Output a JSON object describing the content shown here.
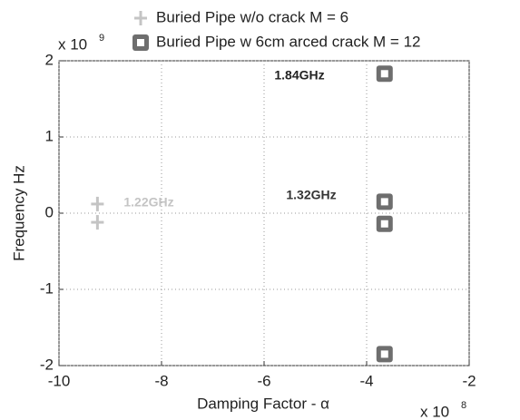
{
  "chart_data": {
    "type": "scatter",
    "xlabel": "Damping Factor - α",
    "ylabel": "Frequency Hz",
    "x_multiplier": {
      "base": "x 10",
      "exponent": "8"
    },
    "y_multiplier": {
      "base": "x 10",
      "exponent": "9"
    },
    "series": [
      {
        "name": "Buried Pipe w/o crack M = 6",
        "color": "#c4c4c4",
        "marker": "plus",
        "x": [
          -9.25,
          -9.25
        ],
        "values": [
          0.12,
          -0.12
        ]
      },
      {
        "name": "Buried Pipe w 6cm arced crack M = 12",
        "color": "#6e6e6e",
        "marker": "square",
        "x": [
          -3.65,
          -3.65,
          -3.65,
          -3.65
        ],
        "values": [
          1.83,
          0.15,
          -0.14,
          -1.85
        ]
      }
    ],
    "annotations": [
      "1.84GHz",
      "1.32GHz",
      "1.22GHz"
    ],
    "xlim": [
      -10,
      -2
    ],
    "xticks": [
      -10,
      -8,
      -6,
      -4,
      -2
    ],
    "ylim": [
      -2,
      2
    ],
    "yticks": [
      -2,
      -1,
      0,
      1,
      2
    ],
    "grid": true
  }
}
